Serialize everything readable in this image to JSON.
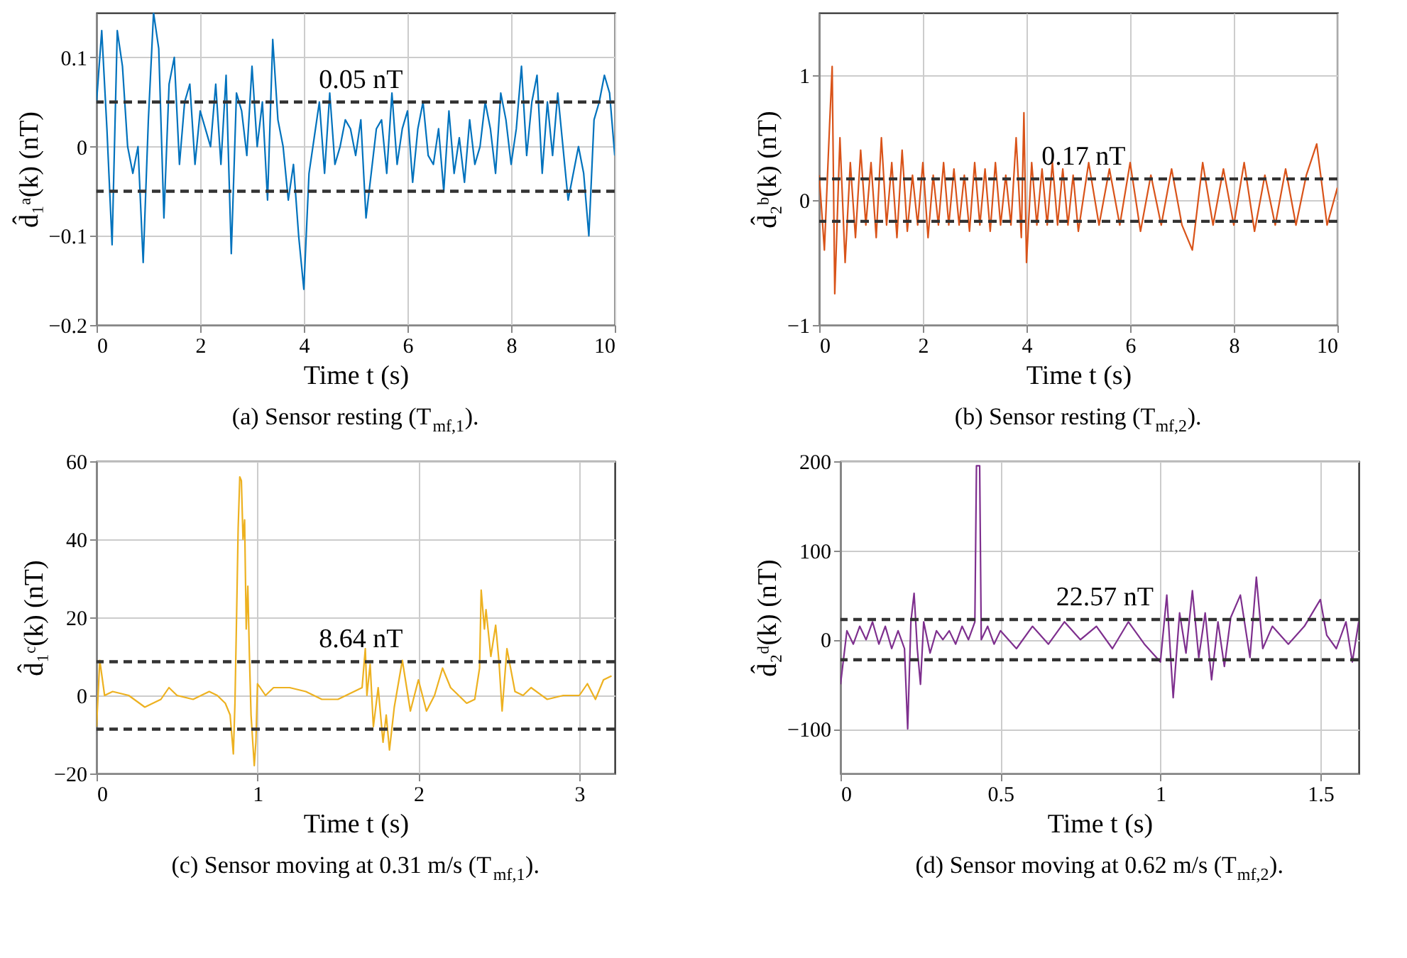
{
  "chart_data": [
    {
      "type": "line",
      "title": "(a) Sensor resting (T$_{mf,1}$).",
      "xlabel": "Time t (s)",
      "ylabel": "d̂₁ᵃ(k) (nT)",
      "xlim": [
        0,
        10
      ],
      "xticks": [
        0,
        2,
        4,
        6,
        8,
        10
      ],
      "ylim": [
        -0.2,
        0.15
      ],
      "yticks": [
        -0.2,
        -0.1,
        0,
        0.1
      ],
      "grid": true,
      "line_style": "solid",
      "series": [
        {
          "color": "#0072bd",
          "x": [
            0,
            0.1,
            0.2,
            0.3,
            0.4,
            0.5,
            0.6,
            0.7,
            0.8,
            0.9,
            1.0,
            1.1,
            1.2,
            1.3,
            1.4,
            1.5,
            1.6,
            1.7,
            1.8,
            1.9,
            2.0,
            2.1,
            2.2,
            2.3,
            2.4,
            2.5,
            2.6,
            2.7,
            2.8,
            2.9,
            3.0,
            3.1,
            3.2,
            3.3,
            3.4,
            3.5,
            3.6,
            3.7,
            3.8,
            3.9,
            4.0,
            4.1,
            4.2,
            4.3,
            4.4,
            4.5,
            4.6,
            4.7,
            4.8,
            4.9,
            5.0,
            5.1,
            5.2,
            5.3,
            5.4,
            5.5,
            5.6,
            5.7,
            5.8,
            5.9,
            6.0,
            6.1,
            6.2,
            6.3,
            6.4,
            6.5,
            6.6,
            6.7,
            6.8,
            6.9,
            7.0,
            7.1,
            7.2,
            7.3,
            7.4,
            7.5,
            7.6,
            7.7,
            7.8,
            7.9,
            8.0,
            8.1,
            8.2,
            8.3,
            8.4,
            8.5,
            8.6,
            8.7,
            8.8,
            8.9,
            9.0,
            9.1,
            9.2,
            9.3,
            9.4,
            9.5,
            9.6,
            9.7,
            9.8,
            9.9,
            10.0
          ],
          "values": [
            0.05,
            0.13,
            0.02,
            -0.11,
            0.13,
            0.09,
            0.0,
            -0.03,
            0.0,
            -0.13,
            0.03,
            0.15,
            0.11,
            -0.08,
            0.07,
            0.1,
            -0.02,
            0.05,
            0.07,
            -0.02,
            0.04,
            0.02,
            0.0,
            0.07,
            -0.02,
            0.08,
            -0.12,
            0.06,
            0.04,
            -0.01,
            0.09,
            0.0,
            0.05,
            -0.06,
            0.12,
            0.03,
            0.0,
            -0.06,
            -0.02,
            -0.1,
            -0.16,
            -0.03,
            0.01,
            0.05,
            -0.03,
            0.06,
            -0.02,
            0.0,
            0.03,
            0.02,
            -0.01,
            0.03,
            -0.08,
            -0.03,
            0.02,
            0.03,
            -0.03,
            0.06,
            -0.02,
            0.02,
            0.04,
            -0.04,
            0.02,
            0.05,
            -0.01,
            -0.02,
            0.02,
            -0.05,
            0.04,
            -0.03,
            0.01,
            -0.04,
            0.03,
            -0.02,
            0.0,
            0.05,
            0.02,
            -0.03,
            0.06,
            0.03,
            -0.02,
            0.02,
            0.09,
            -0.01,
            0.05,
            0.08,
            -0.03,
            0.05,
            -0.01,
            0.06,
            0.0,
            -0.06,
            -0.03,
            0.0,
            -0.03,
            -0.1,
            0.03,
            0.05,
            0.08,
            0.06,
            -0.01
          ]
        }
      ],
      "ref_lines": [
        {
          "axis": "y",
          "value": 0.05,
          "color": "#333333",
          "line_style": "dashed"
        },
        {
          "axis": "y",
          "value": -0.05,
          "color": "#333333",
          "line_style": "dashed"
        }
      ],
      "annotations": [
        "0.05 nT"
      ]
    },
    {
      "type": "line",
      "title": "(b) Sensor resting (T$_{mf,2}$).",
      "xlabel": "Time t (s)",
      "ylabel": "d̂₂ᵇ(k) (nT)",
      "xlim": [
        0,
        10
      ],
      "xticks": [
        0,
        2,
        4,
        6,
        8,
        10
      ],
      "ylim": [
        -1,
        1.5
      ],
      "yticks": [
        -1,
        0,
        1
      ],
      "grid": true,
      "line_style": "solid",
      "series": [
        {
          "color": "#d95319",
          "x": [
            0,
            0.1,
            0.2,
            0.25,
            0.3,
            0.4,
            0.5,
            0.6,
            0.7,
            0.8,
            0.9,
            1.0,
            1.1,
            1.2,
            1.3,
            1.4,
            1.5,
            1.6,
            1.7,
            1.8,
            1.9,
            2.0,
            2.1,
            2.2,
            2.3,
            2.4,
            2.5,
            2.6,
            2.7,
            2.8,
            2.9,
            3.0,
            3.1,
            3.2,
            3.3,
            3.4,
            3.5,
            3.6,
            3.7,
            3.8,
            3.9,
            3.95,
            4.0,
            4.1,
            4.2,
            4.3,
            4.4,
            4.5,
            4.6,
            4.7,
            4.8,
            4.9,
            5.0,
            5.2,
            5.4,
            5.6,
            5.8,
            6.0,
            6.2,
            6.4,
            6.6,
            6.8,
            7.0,
            7.2,
            7.4,
            7.6,
            7.8,
            8.0,
            8.2,
            8.4,
            8.6,
            8.8,
            9.0,
            9.2,
            9.4,
            9.6,
            9.8,
            10.0
          ],
          "values": [
            0.2,
            -0.4,
            0.6,
            1.07,
            -0.75,
            0.5,
            -0.5,
            0.3,
            -0.3,
            0.4,
            -0.2,
            0.3,
            -0.3,
            0.5,
            -0.2,
            0.3,
            -0.3,
            0.4,
            -0.25,
            0.2,
            -0.2,
            0.3,
            -0.3,
            0.2,
            -0.2,
            0.3,
            -0.2,
            0.25,
            -0.2,
            0.2,
            -0.25,
            0.3,
            -0.2,
            0.25,
            -0.25,
            0.3,
            -0.2,
            0.2,
            -0.2,
            0.5,
            -0.3,
            0.7,
            -0.5,
            0.3,
            -0.2,
            0.25,
            -0.2,
            0.3,
            -0.2,
            0.25,
            -0.2,
            0.2,
            -0.25,
            0.3,
            -0.2,
            0.25,
            -0.2,
            0.3,
            -0.25,
            0.2,
            -0.2,
            0.25,
            -0.2,
            -0.4,
            0.3,
            -0.2,
            0.25,
            -0.2,
            0.3,
            -0.25,
            0.2,
            -0.2,
            0.25,
            -0.2,
            0.2,
            0.45,
            -0.2,
            0.1
          ]
        }
      ],
      "ref_lines": [
        {
          "axis": "y",
          "value": 0.17,
          "color": "#333333",
          "line_style": "dashed"
        },
        {
          "axis": "y",
          "value": -0.17,
          "color": "#333333",
          "line_style": "dashed"
        }
      ],
      "annotations": [
        "0.17 nT"
      ]
    },
    {
      "type": "line",
      "title": "(c) Sensor moving at 0.31 m/s (T$_{mf,1}$).",
      "xlabel": "Time t (s)",
      "ylabel": "d̂₁ᶜ(k) (nT)",
      "xlim": [
        0,
        3.22
      ],
      "xticks": [
        0,
        1,
        2,
        3
      ],
      "ylim": [
        -20,
        60
      ],
      "yticks": [
        -20,
        0,
        20,
        40,
        60
      ],
      "grid": true,
      "line_style": "solid",
      "series": [
        {
          "color": "#edb120",
          "x": [
            0,
            0.02,
            0.05,
            0.1,
            0.2,
            0.3,
            0.4,
            0.45,
            0.5,
            0.6,
            0.7,
            0.75,
            0.8,
            0.83,
            0.85,
            0.86,
            0.87,
            0.88,
            0.89,
            0.9,
            0.91,
            0.92,
            0.93,
            0.94,
            0.95,
            0.96,
            0.98,
            0.99,
            1.0,
            1.05,
            1.1,
            1.2,
            1.3,
            1.4,
            1.5,
            1.6,
            1.65,
            1.67,
            1.68,
            1.7,
            1.72,
            1.75,
            1.78,
            1.8,
            1.82,
            1.85,
            1.9,
            1.95,
            2.0,
            2.05,
            2.1,
            2.15,
            2.2,
            2.25,
            2.3,
            2.35,
            2.38,
            2.39,
            2.41,
            2.42,
            2.45,
            2.48,
            2.5,
            2.52,
            2.55,
            2.6,
            2.65,
            2.7,
            2.8,
            2.9,
            3.0,
            3.05,
            3.1,
            3.15,
            3.2
          ],
          "values": [
            -8,
            9,
            0,
            1,
            0,
            -3,
            -1,
            2,
            0,
            -1,
            1,
            0,
            -2,
            -5,
            -15,
            -2,
            20,
            43,
            56,
            55,
            40,
            45,
            17,
            28,
            10,
            -5,
            -18,
            -12,
            3,
            0,
            2,
            2,
            1,
            -1,
            -1,
            1,
            2,
            12,
            0,
            8,
            -8,
            2,
            -12,
            -5,
            -14,
            -3,
            9,
            -4,
            4,
            -4,
            0,
            7,
            2,
            0,
            -2,
            -1,
            7,
            27,
            17,
            22,
            10,
            18,
            9,
            -4,
            12,
            1,
            0,
            2,
            -1,
            0,
            0,
            3,
            -1,
            4,
            5
          ]
        }
      ],
      "ref_lines": [
        {
          "axis": "y",
          "value": 8.64,
          "color": "#333333",
          "line_style": "dashed"
        },
        {
          "axis": "y",
          "value": -8.64,
          "color": "#333333",
          "line_style": "dashed"
        }
      ],
      "annotations": [
        "8.64 nT"
      ]
    },
    {
      "type": "line",
      "title": "(d) Sensor moving at 0.62 m/s (T$_{mf,2}$).",
      "xlabel": "Time t (s)",
      "ylabel": "d̂₂ᵈ(k) (nT)",
      "xlim": [
        0,
        1.62
      ],
      "xticks": [
        0,
        0.5,
        1,
        1.5
      ],
      "ylim": [
        -150,
        200
      ],
      "yticks": [
        -100,
        0,
        100,
        200
      ],
      "grid": true,
      "line_style": "solid",
      "series": [
        {
          "color": "#7e2f8e",
          "x": [
            0,
            0.02,
            0.04,
            0.06,
            0.08,
            0.1,
            0.12,
            0.14,
            0.16,
            0.18,
            0.2,
            0.21,
            0.22,
            0.23,
            0.24,
            0.25,
            0.26,
            0.28,
            0.3,
            0.32,
            0.34,
            0.36,
            0.38,
            0.4,
            0.42,
            0.425,
            0.435,
            0.44,
            0.46,
            0.48,
            0.5,
            0.55,
            0.6,
            0.65,
            0.7,
            0.75,
            0.8,
            0.85,
            0.9,
            0.95,
            1.0,
            1.02,
            1.04,
            1.06,
            1.08,
            1.1,
            1.12,
            1.14,
            1.16,
            1.18,
            1.2,
            1.22,
            1.25,
            1.28,
            1.3,
            1.32,
            1.35,
            1.4,
            1.45,
            1.5,
            1.52,
            1.55,
            1.58,
            1.6,
            1.62
          ],
          "values": [
            -50,
            10,
            -5,
            15,
            0,
            20,
            -5,
            15,
            -10,
            10,
            -10,
            -100,
            20,
            52,
            -10,
            -50,
            20,
            -15,
            10,
            0,
            10,
            -5,
            15,
            0,
            20,
            195,
            195,
            0,
            15,
            -5,
            10,
            -10,
            15,
            -5,
            20,
            0,
            15,
            -10,
            20,
            -5,
            -25,
            50,
            -65,
            30,
            -15,
            55,
            -20,
            30,
            -45,
            20,
            -30,
            25,
            50,
            -20,
            70,
            -10,
            15,
            -5,
            15,
            45,
            5,
            -10,
            20,
            -25,
            20
          ]
        }
      ],
      "ref_lines": [
        {
          "axis": "y",
          "value": 22.57,
          "color": "#333333",
          "line_style": "dashed"
        },
        {
          "axis": "y",
          "value": -22.57,
          "color": "#333333",
          "line_style": "dashed"
        }
      ],
      "annotations": [
        "22.57 nT"
      ]
    }
  ]
}
